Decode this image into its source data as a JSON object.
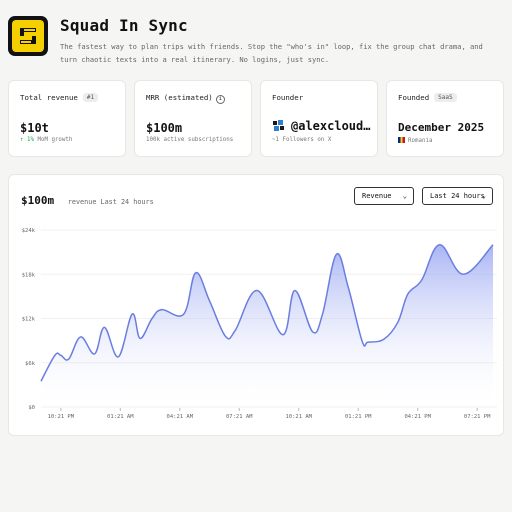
{
  "header": {
    "title": "Squad In Sync",
    "description": "The fastest way to plan trips with friends. Stop the \"who's in\" loop, fix the group chat drama, and turn chaotic texts into a real itinerary. No logins, just sync."
  },
  "cards": {
    "revenue": {
      "label": "Total revenue",
      "tag": "#1",
      "value": "$10t",
      "sub_arrow": "↑",
      "sub_pct": "1%",
      "sub_text": "MoM growth"
    },
    "mrr": {
      "label": "MRR (estimated)",
      "info": "i",
      "value": "$100m",
      "sub": "100k active subscriptions"
    },
    "founder": {
      "label": "Founder",
      "value": "@alexcloud…",
      "sub": "~1 Followers on X"
    },
    "founded": {
      "label": "Founded",
      "tag": "SaaS",
      "value": "December 2025",
      "country": "Romania"
    }
  },
  "chart_header": {
    "value": "$100m",
    "caption": "revenue Last 24 hours",
    "metric_select": "Revenue",
    "range_select": "Last 24 hours",
    "chevron": "⌄"
  },
  "colors": {
    "line": "#6b7ee0",
    "fill_top": "#8c9cf0",
    "fill_bottom": "#ffffff",
    "up": "#16a34a"
  },
  "chart_data": {
    "type": "area",
    "title": "",
    "xlabel": "",
    "ylabel": "",
    "ylim": [
      0,
      24000
    ],
    "y_ticks": [
      {
        "value": 0,
        "label": "$0"
      },
      {
        "value": 6000,
        "label": "$6k"
      },
      {
        "value": 12000,
        "label": "$12k"
      },
      {
        "value": 18000,
        "label": "$18k"
      },
      {
        "value": 24000,
        "label": "$24k"
      }
    ],
    "x_tick_labels": [
      "10:21 PM",
      "01:21 AM",
      "04:21 AM",
      "07:21 AM",
      "10:21 AM",
      "01:21 PM",
      "04:21 PM",
      "07:21 PM"
    ],
    "x_tick_hours": [
      1,
      4,
      7,
      10,
      13,
      16,
      19,
      22
    ],
    "x_hours": [
      0,
      1,
      1,
      1,
      2,
      3,
      3,
      4,
      5,
      5,
      6,
      7,
      8,
      9,
      9,
      10,
      10,
      11,
      12,
      13,
      14,
      15,
      15,
      16,
      17,
      17,
      18,
      19,
      19,
      20,
      21,
      22,
      23
    ],
    "x_hours_precise": [
      0,
      0.7,
      1,
      1.4,
      2,
      2.7,
      3.2,
      3.9,
      4.6,
      5,
      5.6,
      6.1,
      7.2,
      7.8,
      8.5,
      9.3,
      9.8,
      10.9,
      12.2,
      12.8,
      13.7,
      14.2,
      14.9,
      15.5,
      16.2,
      16.5,
      17.3,
      18,
      18.5,
      19.2,
      20.1,
      21.3,
      22.8
    ],
    "values": [
      3500,
      7000,
      7000,
      6500,
      9500,
      7200,
      10800,
      6800,
      12600,
      9300,
      12000,
      13200,
      12600,
      18200,
      14400,
      9600,
      10400,
      15800,
      9800,
      15800,
      10200,
      12600,
      20700,
      16200,
      8900,
      8800,
      9200,
      11500,
      15300,
      17200,
      22000,
      18000,
      22000
    ]
  }
}
